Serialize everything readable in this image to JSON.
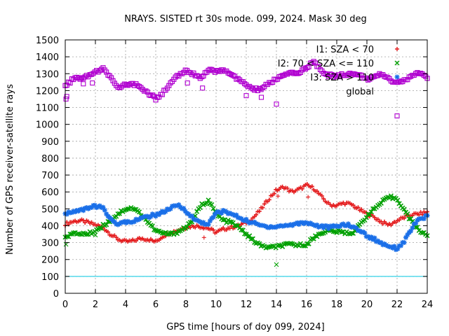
{
  "chart_data": {
    "type": "scatter",
    "title": "NRAYS. SISTED rt 30s mode. 099, 2024. Mask 30 deg",
    "xlabel": "GPS time [hours of doy 099, 2024]",
    "ylabel": "Number of GPS receiver-satellite rays",
    "xlim": [
      0,
      24
    ],
    "ylim": [
      0,
      1500
    ],
    "xticks": [
      0,
      2,
      4,
      6,
      8,
      10,
      12,
      14,
      16,
      18,
      20,
      22,
      24
    ],
    "yticks": [
      0,
      100,
      200,
      300,
      400,
      500,
      600,
      700,
      800,
      900,
      1000,
      1100,
      1200,
      1300,
      1400,
      1500
    ],
    "grid": true,
    "reference_line": {
      "y": 100,
      "color": "#00c8e0"
    },
    "series": [
      {
        "name": "I1: SZA < 70",
        "marker": "+",
        "color": "#e41a1c",
        "x": [
          0,
          0.5,
          1,
          1.5,
          2,
          2.5,
          3,
          3.5,
          4,
          4.5,
          5,
          5.5,
          6,
          6.5,
          7,
          7.5,
          8,
          8.5,
          9,
          9.5,
          10,
          10.5,
          11,
          11.5,
          12,
          12.5,
          13,
          13.5,
          14,
          14.5,
          15,
          15.5,
          16,
          16.5,
          17,
          17.5,
          18,
          18.5,
          19,
          19.5,
          20,
          20.5,
          21,
          21.5,
          22,
          22.5,
          23,
          23.5,
          24
        ],
        "y": [
          410,
          425,
          430,
          420,
          405,
          390,
          350,
          320,
          305,
          310,
          325,
          320,
          305,
          340,
          360,
          375,
          390,
          400,
          395,
          385,
          360,
          380,
          390,
          400,
          420,
          450,
          500,
          560,
          610,
          630,
          600,
          615,
          640,
          620,
          570,
          525,
          520,
          535,
          525,
          495,
          470,
          450,
          420,
          405,
          430,
          450,
          465,
          470,
          480
        ],
        "outliers": [
          [
            9.2,
            330
          ],
          [
            14.1,
            575
          ],
          [
            16.1,
            570
          ]
        ]
      },
      {
        "name": "I2: 70 < SZA <= 110",
        "marker": "x",
        "color": "#00a000",
        "x": [
          0,
          0.5,
          1,
          1.5,
          2,
          2.5,
          3,
          3.5,
          4,
          4.5,
          5,
          5.5,
          6,
          6.5,
          7,
          7.5,
          8,
          8.5,
          9,
          9.5,
          10,
          10.5,
          11,
          11.5,
          12,
          12.5,
          13,
          13.5,
          14,
          14.5,
          15,
          15.5,
          16,
          16.5,
          17,
          17.5,
          18,
          18.5,
          19,
          19.5,
          20,
          20.5,
          21,
          21.5,
          22,
          22.5,
          23,
          23.5,
          24
        ],
        "y": [
          340,
          350,
          355,
          350,
          370,
          400,
          430,
          470,
          500,
          505,
          470,
          420,
          370,
          355,
          350,
          365,
          390,
          440,
          520,
          550,
          470,
          430,
          420,
          390,
          350,
          310,
          280,
          270,
          275,
          285,
          290,
          285,
          290,
          330,
          360,
          370,
          365,
          360,
          355,
          400,
          460,
          500,
          540,
          570,
          560,
          490,
          420,
          370,
          345
        ],
        "outliers": [
          [
            0.05,
            290
          ],
          [
            14.0,
            170
          ],
          [
            2.0,
            345
          ]
        ]
      },
      {
        "name": "I3: SZA > 110",
        "marker": "*",
        "color": "#1a6fe8",
        "x": [
          0,
          0.5,
          1,
          1.5,
          2,
          2.5,
          3,
          3.5,
          4,
          4.5,
          5,
          5.5,
          6,
          6.5,
          7,
          7.5,
          8,
          8.5,
          9,
          9.5,
          10,
          10.5,
          11,
          11.5,
          12,
          12.5,
          13,
          13.5,
          14,
          14.5,
          15,
          15.5,
          16,
          16.5,
          17,
          17.5,
          18,
          18.5,
          19,
          19.5,
          20,
          20.5,
          21,
          21.5,
          22,
          22.5,
          23,
          23.5,
          24
        ],
        "y": [
          475,
          480,
          490,
          505,
          515,
          505,
          440,
          410,
          420,
          430,
          440,
          455,
          465,
          480,
          505,
          520,
          490,
          440,
          420,
          410,
          475,
          485,
          470,
          450,
          430,
          415,
          400,
          395,
          395,
          400,
          405,
          415,
          420,
          405,
          395,
          390,
          395,
          410,
          395,
          375,
          340,
          320,
          295,
          280,
          265,
          310,
          390,
          440,
          455
        ],
        "outliers": []
      },
      {
        "name": "global",
        "marker": "square",
        "color": "#b000d0",
        "x": [
          0,
          0.5,
          1,
          1.5,
          2,
          2.5,
          3,
          3.5,
          4,
          4.5,
          5,
          5.5,
          6,
          6.5,
          7,
          7.5,
          8,
          8.5,
          9,
          9.5,
          10,
          10.5,
          11,
          11.5,
          12,
          12.5,
          13,
          13.5,
          14,
          14.5,
          15,
          15.5,
          16,
          16.5,
          17,
          17.5,
          18,
          18.5,
          19,
          19.5,
          20,
          20.5,
          21,
          21.5,
          22,
          22.5,
          23,
          23.5,
          24
        ],
        "y": [
          1230,
          1265,
          1275,
          1285,
          1305,
          1340,
          1280,
          1210,
          1235,
          1240,
          1220,
          1185,
          1150,
          1190,
          1250,
          1290,
          1315,
          1300,
          1275,
          1320,
          1310,
          1325,
          1300,
          1260,
          1235,
          1205,
          1210,
          1240,
          1270,
          1290,
          1300,
          1305,
          1340,
          1370,
          1310,
          1290,
          1285,
          1295,
          1300,
          1290,
          1270,
          1275,
          1300,
          1265,
          1250,
          1260,
          1285,
          1310,
          1275
        ],
        "outliers": [
          [
            0.05,
            1150
          ],
          [
            0.1,
            1165
          ],
          [
            1.2,
            1240
          ],
          [
            1.8,
            1245
          ],
          [
            14.0,
            1120
          ],
          [
            13.0,
            1160
          ],
          [
            12.0,
            1170
          ],
          [
            9.1,
            1215
          ],
          [
            22.0,
            1050
          ],
          [
            8.1,
            1245
          ]
        ]
      }
    ],
    "legend_position": "top-right"
  }
}
